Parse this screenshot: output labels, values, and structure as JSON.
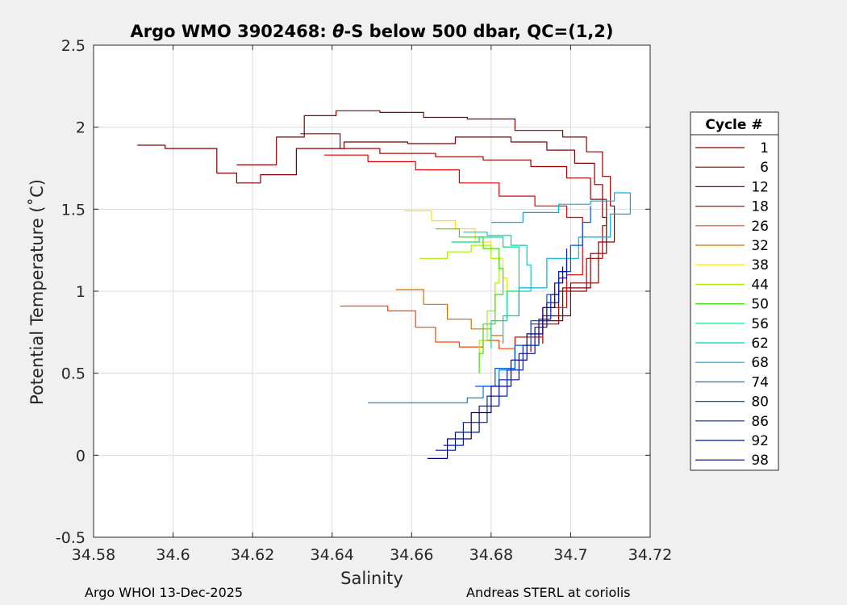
{
  "chart_data": {
    "type": "line",
    "title_prefix": "Argo WMO 3902468: ",
    "title_theta": "θ",
    "title_suffix": "-S below 500 dbar,  QC=(1,2)",
    "xlabel": "Salinity",
    "ylabel": "Potential Temperature (˚C)",
    "xlim": [
      34.58,
      34.72
    ],
    "ylim": [
      -0.5,
      2.5
    ],
    "xticks": [
      "34.58",
      "34.6",
      "34.62",
      "34.64",
      "34.66",
      "34.68",
      "34.7",
      "34.72"
    ],
    "yticks": [
      "2.5",
      "2",
      "1.5",
      "1",
      "0.5",
      "0",
      "-0.5"
    ],
    "grid": true,
    "legend_position": "outside-right",
    "legend_title": "Cycle #",
    "series": [
      {
        "name": "1",
        "color": "#800000",
        "points": [
          [
            34.591,
            1.89
          ],
          [
            34.598,
            1.87
          ],
          [
            34.609,
            1.87
          ],
          [
            34.611,
            1.72
          ],
          [
            34.616,
            1.66
          ],
          [
            34.622,
            1.71
          ],
          [
            34.631,
            1.87
          ],
          [
            34.643,
            1.91
          ],
          [
            34.659,
            1.9
          ],
          [
            34.671,
            1.94
          ],
          [
            34.685,
            1.91
          ],
          [
            34.694,
            1.86
          ],
          [
            34.701,
            1.78
          ],
          [
            34.706,
            1.65
          ],
          [
            34.708,
            1.45
          ],
          [
            34.709,
            1.23
          ],
          [
            34.705,
            1.02
          ],
          [
            34.698,
            0.82
          ],
          [
            34.692,
            0.68
          ]
        ]
      },
      {
        "name": "6",
        "color": "#8b0000",
        "points": [
          [
            34.616,
            1.77
          ],
          [
            34.626,
            1.94
          ],
          [
            34.633,
            2.07
          ],
          [
            34.641,
            2.1
          ],
          [
            34.652,
            2.09
          ],
          [
            34.663,
            2.06
          ],
          [
            34.674,
            2.05
          ],
          [
            34.686,
            1.98
          ],
          [
            34.698,
            1.94
          ],
          [
            34.704,
            1.85
          ],
          [
            34.708,
            1.7
          ],
          [
            34.71,
            1.52
          ],
          [
            34.711,
            1.3
          ],
          [
            34.707,
            1.05
          ],
          [
            34.7,
            0.85
          ],
          [
            34.693,
            0.68
          ]
        ]
      },
      {
        "name": "12",
        "color": "#a00000",
        "points": [
          [
            34.632,
            1.96
          ],
          [
            34.642,
            1.87
          ],
          [
            34.652,
            1.84
          ],
          [
            34.666,
            1.82
          ],
          [
            34.678,
            1.8
          ],
          [
            34.69,
            1.76
          ],
          [
            34.699,
            1.69
          ],
          [
            34.705,
            1.56
          ],
          [
            34.709,
            1.4
          ],
          [
            34.708,
            1.2
          ],
          [
            34.704,
            1.0
          ],
          [
            34.697,
            0.8
          ],
          [
            34.69,
            0.63
          ]
        ]
      },
      {
        "name": "18",
        "color": "#e00000",
        "points": [
          [
            34.638,
            1.83
          ],
          [
            34.649,
            1.79
          ],
          [
            34.661,
            1.74
          ],
          [
            34.672,
            1.66
          ],
          [
            34.682,
            1.58
          ],
          [
            34.691,
            1.52
          ],
          [
            34.699,
            1.45
          ],
          [
            34.703,
            1.3
          ],
          [
            34.703,
            1.1
          ],
          [
            34.699,
            0.9
          ],
          [
            34.693,
            0.72
          ],
          [
            34.686,
            0.58
          ]
        ]
      },
      {
        "name": "26",
        "color": "#ff4000",
        "points": [
          [
            34.642,
            0.91
          ],
          [
            34.654,
            0.88
          ],
          [
            34.661,
            0.78
          ],
          [
            34.666,
            0.69
          ],
          [
            34.672,
            0.66
          ],
          [
            34.678,
            0.7
          ],
          [
            34.682,
            0.65
          ],
          [
            34.686,
            0.6
          ]
        ]
      },
      {
        "name": "32",
        "color": "#d87000",
        "points": [
          [
            34.656,
            1.01
          ],
          [
            34.663,
            0.92
          ],
          [
            34.669,
            0.83
          ],
          [
            34.675,
            0.77
          ],
          [
            34.68,
            0.73
          ],
          [
            34.683,
            0.68
          ]
        ]
      },
      {
        "name": "38",
        "color": "#ffe000",
        "points": [
          [
            34.658,
            1.49
          ],
          [
            34.665,
            1.43
          ],
          [
            34.671,
            1.38
          ],
          [
            34.676,
            1.3
          ],
          [
            34.68,
            1.2
          ],
          [
            34.683,
            1.08
          ],
          [
            34.684,
            0.95
          ]
        ]
      },
      {
        "name": "44",
        "color": "#a8f000",
        "points": [
          [
            34.662,
            1.2
          ],
          [
            34.669,
            1.24
          ],
          [
            34.675,
            1.28
          ],
          [
            34.68,
            1.2
          ],
          [
            34.682,
            1.05
          ],
          [
            34.681,
            0.88
          ],
          [
            34.679,
            0.7
          ],
          [
            34.677,
            0.55
          ]
        ]
      },
      {
        "name": "50",
        "color": "#40e000",
        "points": [
          [
            34.666,
            1.38
          ],
          [
            34.672,
            1.33
          ],
          [
            34.678,
            1.26
          ],
          [
            34.682,
            1.14
          ],
          [
            34.683,
            0.98
          ],
          [
            34.681,
            0.8
          ],
          [
            34.678,
            0.62
          ],
          [
            34.677,
            0.5
          ]
        ]
      },
      {
        "name": "56",
        "color": "#00e080",
        "points": [
          [
            34.67,
            1.3
          ],
          [
            34.677,
            1.33
          ],
          [
            34.683,
            1.27
          ],
          [
            34.687,
            1.15
          ],
          [
            34.687,
            1.0
          ],
          [
            34.684,
            0.82
          ],
          [
            34.68,
            0.65
          ]
        ]
      },
      {
        "name": "62",
        "color": "#00d0c0",
        "points": [
          [
            34.673,
            1.36
          ],
          [
            34.679,
            1.34
          ],
          [
            34.685,
            1.28
          ],
          [
            34.689,
            1.16
          ],
          [
            34.69,
            1.0
          ],
          [
            34.687,
            0.85
          ],
          [
            34.683,
            0.69
          ]
        ]
      },
      {
        "name": "68",
        "color": "#00b0e0",
        "points": [
          [
            34.68,
            1.42
          ],
          [
            34.688,
            1.48
          ],
          [
            34.697,
            1.53
          ],
          [
            34.705,
            1.55
          ],
          [
            34.711,
            1.6
          ],
          [
            34.715,
            1.47
          ],
          [
            34.71,
            1.33
          ],
          [
            34.702,
            1.2
          ],
          [
            34.694,
            1.02
          ],
          [
            34.687,
            0.85
          ]
        ]
      },
      {
        "name": "74",
        "color": "#0080d0",
        "points": [
          [
            34.649,
            0.32
          ],
          [
            34.659,
            0.32
          ],
          [
            34.668,
            0.32
          ],
          [
            34.674,
            0.35
          ],
          [
            34.678,
            0.42
          ],
          [
            34.682,
            0.52
          ],
          [
            34.686,
            0.65
          ]
        ]
      },
      {
        "name": "80",
        "color": "#0050e0",
        "points": [
          [
            34.676,
            0.42
          ],
          [
            34.681,
            0.53
          ],
          [
            34.686,
            0.67
          ],
          [
            34.69,
            0.82
          ],
          [
            34.694,
            0.98
          ],
          [
            34.697,
            1.12
          ],
          [
            34.7,
            1.28
          ],
          [
            34.703,
            1.42
          ],
          [
            34.705,
            1.52
          ]
        ]
      },
      {
        "name": "86",
        "color": "#0020c0",
        "points": [
          [
            34.668,
            0.06
          ],
          [
            34.673,
            0.2
          ],
          [
            34.679,
            0.36
          ],
          [
            34.684,
            0.52
          ],
          [
            34.688,
            0.67
          ],
          [
            34.692,
            0.83
          ],
          [
            34.695,
            0.98
          ],
          [
            34.697,
            1.12
          ],
          [
            34.699,
            1.26
          ]
        ]
      },
      {
        "name": "92",
        "color": "#0010a0",
        "points": [
          [
            34.666,
            0.03
          ],
          [
            34.671,
            0.14
          ],
          [
            34.677,
            0.3
          ],
          [
            34.682,
            0.46
          ],
          [
            34.687,
            0.62
          ],
          [
            34.691,
            0.78
          ],
          [
            34.694,
            0.93
          ],
          [
            34.697,
            1.08
          ],
          [
            34.699,
            1.2
          ]
        ]
      },
      {
        "name": "98",
        "color": "#000080",
        "points": [
          [
            34.664,
            -0.02
          ],
          [
            34.669,
            0.1
          ],
          [
            34.675,
            0.26
          ],
          [
            34.68,
            0.42
          ],
          [
            34.685,
            0.58
          ],
          [
            34.689,
            0.74
          ],
          [
            34.693,
            0.9
          ],
          [
            34.696,
            1.05
          ],
          [
            34.698,
            1.15
          ]
        ]
      }
    ]
  },
  "footer": {
    "left": "Argo WHOI 13-Dec-2025",
    "right": "Andreas STERL at coriolis"
  }
}
